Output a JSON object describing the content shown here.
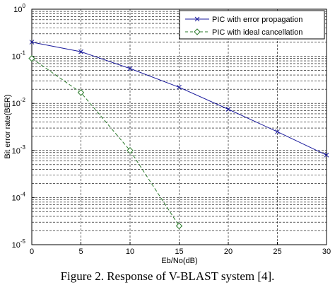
{
  "caption": "Figure 2. Response of V-BLAST system [4].",
  "chart_data": {
    "type": "line",
    "x_scale": "linear",
    "y_scale": "log",
    "xlabel": "Eb/No(dB)",
    "ylabel": "Bit error rate(BER)",
    "xlim": [
      0,
      30
    ],
    "ylim": [
      1e-05,
      1
    ],
    "x_ticks": [
      "0",
      "5",
      "10",
      "15",
      "20",
      "25",
      "30"
    ],
    "y_ticks": [
      {
        "base": "10",
        "exp": "-5"
      },
      {
        "base": "10",
        "exp": "-4"
      },
      {
        "base": "10",
        "exp": "-3"
      },
      {
        "base": "10",
        "exp": "-2"
      },
      {
        "base": "10",
        "exp": "-1"
      },
      {
        "base": "10",
        "exp": "0"
      }
    ],
    "grid": true,
    "legend_position": "top-right",
    "series": [
      {
        "name": "PIC with error propagation",
        "color": "#1a1a9c",
        "line_style": "solid",
        "marker": "x",
        "x": [
          0,
          5,
          10,
          15,
          20,
          25,
          30
        ],
        "y": [
          0.2,
          0.125,
          0.055,
          0.022,
          0.0075,
          0.0025,
          0.0008
        ]
      },
      {
        "name": "PIC with ideal cancellation",
        "color": "#2a7a2a",
        "line_style": "dashed",
        "marker": "diamond",
        "x": [
          0,
          5,
          10,
          15
        ],
        "y": [
          0.09,
          0.017,
          0.001,
          2.5e-05
        ]
      }
    ]
  }
}
